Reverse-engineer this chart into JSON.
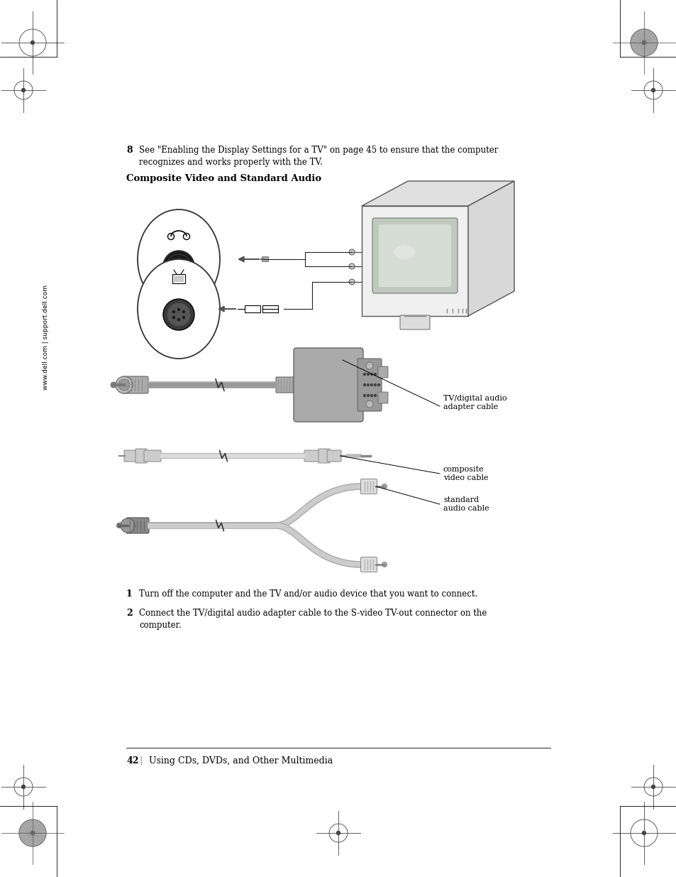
{
  "bg_color": "#ffffff",
  "page_title": "Composite Video and Standard Audio",
  "step8_bold": "8",
  "step1_bold": "1",
  "step1_text": "Turn off the computer and the TV and/or audio device that you want to connect.",
  "step2_bold": "2",
  "step2_line1": "Connect the TV/digital audio adapter cable to the S-video TV-out connector on the",
  "step2_line2": "computer.",
  "step8_line1": "See \"Enabling the Display Settings for a TV\" on page 45 to ensure that the computer",
  "step8_line2": "recognizes and works properly with the TV.",
  "footer_page": "42",
  "footer_text": "Using CDs, DVDs, and Other Multimedia",
  "sidebar_text": "www.dell.com | support.dell.com",
  "label1": "TV/digital audio\nadapter cable",
  "label2": "composite\nvideo cable",
  "label3": "standard\naudio cable"
}
